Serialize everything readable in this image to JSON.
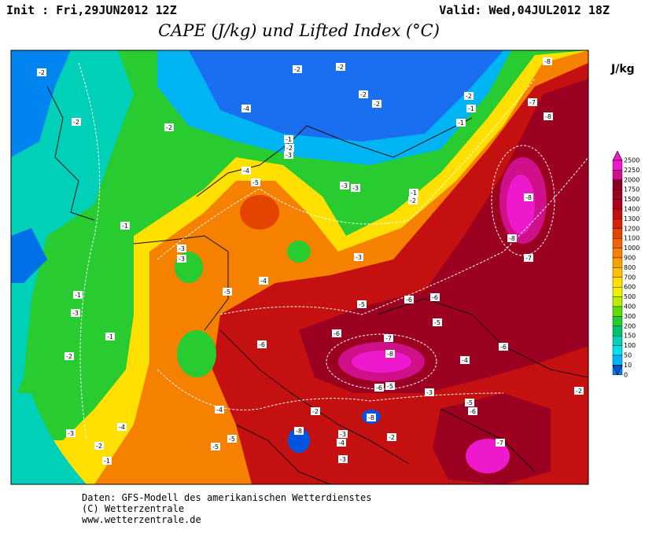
{
  "header": {
    "init": "Init : Fri,29JUN2012 12Z",
    "valid": "Valid: Wed,04JUL2012 18Z",
    "title": "CAPE (J/kg) und Lifted Index (°C)"
  },
  "legend": {
    "unit": "J/kg",
    "levels": [
      2500,
      2250,
      2000,
      1750,
      1500,
      1400,
      1300,
      1200,
      1100,
      1000,
      900,
      800,
      700,
      600,
      500,
      400,
      300,
      200,
      150,
      100,
      50,
      10,
      0
    ],
    "colors": [
      "#ee18cc",
      "#d0108a",
      "#8a0024",
      "#9c0020",
      "#b0001a",
      "#c41010",
      "#d82400",
      "#e44400",
      "#ee6200",
      "#f68000",
      "#fca000",
      "#ffc200",
      "#ffe000",
      "#eef000",
      "#b8ec00",
      "#60dc00",
      "#20cc30",
      "#00c070",
      "#00d0b8",
      "#00e0e8",
      "#00b4f4",
      "#0084f0",
      "#0054e0"
    ]
  },
  "lifted_index_labels": [
    -2,
    -2,
    -2,
    -4,
    -2,
    -2,
    -2,
    -2,
    -2,
    -1,
    -1,
    -8,
    -7,
    -8,
    -1,
    -2,
    -3,
    -4,
    -5,
    -3,
    -3,
    -1,
    -2,
    -8,
    -8,
    -7,
    -1,
    -3,
    -3,
    -3,
    -4,
    -5,
    -1,
    -3,
    -5,
    -6,
    -6,
    -5,
    -6,
    -7,
    -8,
    -6,
    -1,
    -2,
    -6,
    -4,
    -6,
    -5,
    -3,
    -2,
    -4,
    -2,
    -5,
    -6,
    -4,
    -3,
    -5,
    -8,
    -3,
    -2,
    -8,
    -2,
    -5,
    -1,
    -7,
    -3,
    -4
  ],
  "footer": [
    "Daten: GFS-Modell des amerikanischen Wetterdienstes",
    "(C) Wetterzentrale",
    "www.wetterzentrale.de"
  ]
}
